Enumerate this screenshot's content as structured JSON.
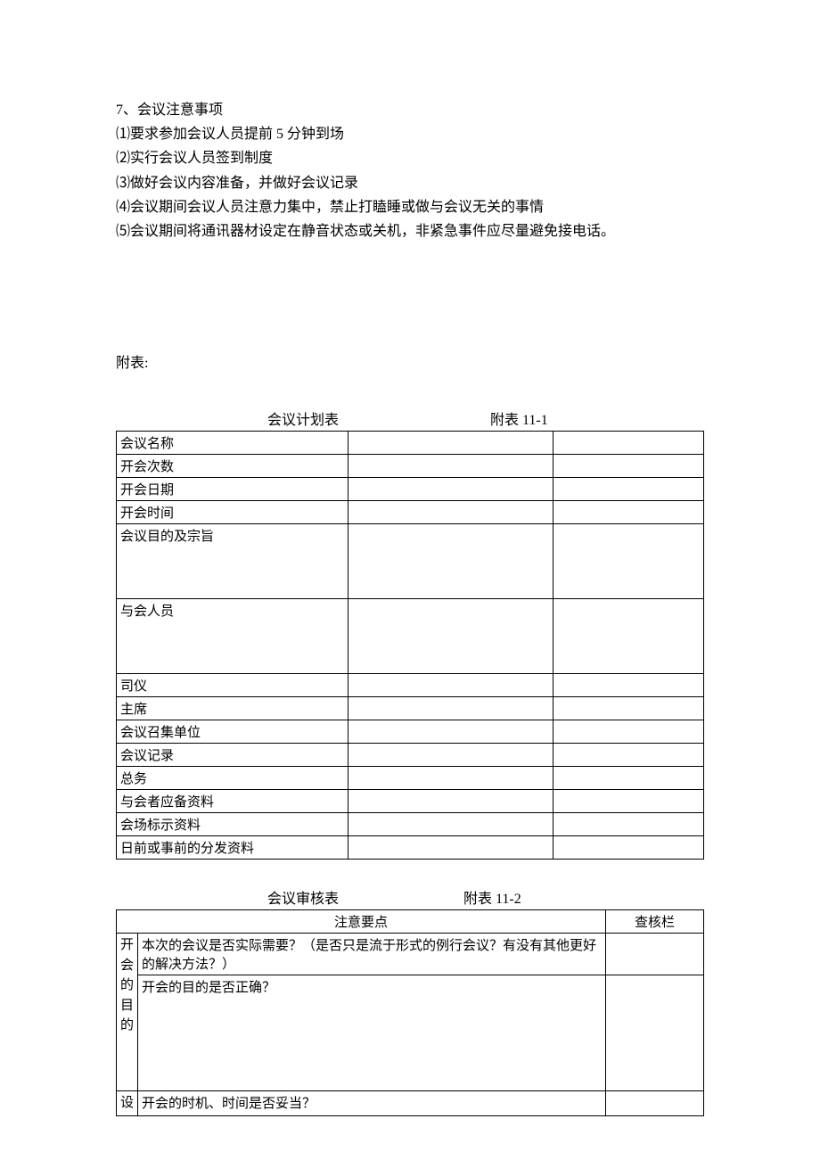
{
  "textBlock": {
    "heading": "7、会议注意事项",
    "items": [
      "⑴要求参加会议人员提前 5 分钟到场",
      "⑵实行会议人员签到制度",
      "⑶做好会议内容准备，并做好会议记录",
      "⑷会议期间会议人员注意力集中，禁止打瞌睡或做与会议无关的事情",
      "⑸会议期间将通讯器材设定在静音状态或关机，非紧急事件应尽量避免接电话。"
    ]
  },
  "appendixLabel": "附表:",
  "planTable": {
    "title": "会议计划表",
    "appendixNum": "附表 11-1",
    "rows": [
      {
        "label": "会议名称",
        "tall": false
      },
      {
        "label": "开会次数",
        "tall": false
      },
      {
        "label": "开会日期",
        "tall": false
      },
      {
        "label": "开会时间",
        "tall": false
      },
      {
        "label": "会议目的及宗旨",
        "tall": true
      },
      {
        "label": "与会人员",
        "tall": true
      },
      {
        "label": "司仪",
        "tall": false
      },
      {
        "label": "主席",
        "tall": false
      },
      {
        "label": "会议召集单位",
        "tall": false
      },
      {
        "label": "会议记录",
        "tall": false
      },
      {
        "label": "总务",
        "tall": false
      },
      {
        "label": "与会者应备资料",
        "tall": false
      },
      {
        "label": "会场标示资料",
        "tall": false
      },
      {
        "label": "日前或事前的分发资料",
        "tall": false
      }
    ]
  },
  "reviewTable": {
    "title": "会议审核表",
    "appendixNum": "附表 11-2",
    "headers": {
      "points": "注意要点",
      "check": "查核栏"
    },
    "group1": {
      "label": "开会的目的",
      "row1": "本次的会议是否实际需要？（是否只是流于形式的例行会议？有没有其他更好的解决方法？）",
      "row2": "开会的目的是否正确？"
    },
    "group2": {
      "label": "设",
      "row1": "开会的时机、时间是否妥当？"
    }
  }
}
